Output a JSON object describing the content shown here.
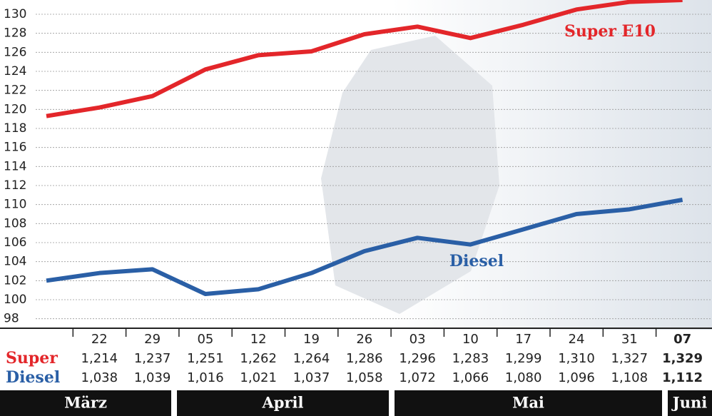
{
  "chart_data": {
    "type": "line",
    "categories": [
      null,
      "22",
      "29",
      "05",
      "12",
      "19",
      "26",
      "03",
      "10",
      "17",
      "24",
      "31",
      "07"
    ],
    "series": [
      {
        "name": "Super E10",
        "color": "#e3262a",
        "values": [
          119.3,
          120.2,
          121.4,
          124.2,
          125.7,
          126.1,
          127.9,
          128.7,
          127.5,
          128.9,
          130.5,
          131.3,
          131.5
        ]
      },
      {
        "name": "Diesel",
        "color": "#2a5fa6",
        "values": [
          102.0,
          102.8,
          103.2,
          100.6,
          101.1,
          102.8,
          105.1,
          106.5,
          105.8,
          107.4,
          109.0,
          109.5,
          110.5
        ]
      }
    ],
    "ylim": [
      97,
      131.5
    ],
    "yticks": [
      98,
      100,
      102,
      104,
      106,
      108,
      110,
      112,
      114,
      116,
      118,
      120,
      122,
      124,
      126,
      128,
      130
    ],
    "grid": true,
    "table_rows": [
      {
        "label": "Super",
        "color": "#e3262a",
        "values": [
          "1,214",
          "1,237",
          "1,251",
          "1,262",
          "1,264",
          "1,286",
          "1,296",
          "1,283",
          "1,299",
          "1,310",
          "1,327",
          "1,329"
        ]
      },
      {
        "label": "Diesel",
        "color": "#2a5fa6",
        "values": [
          "1,038",
          "1,039",
          "1,016",
          "1,021",
          "1,037",
          "1,058",
          "1,072",
          "1,066",
          "1,080",
          "1,096",
          "1,108",
          "1,112"
        ]
      }
    ],
    "months": [
      "März",
      "April",
      "Mai",
      "Juni"
    ]
  }
}
